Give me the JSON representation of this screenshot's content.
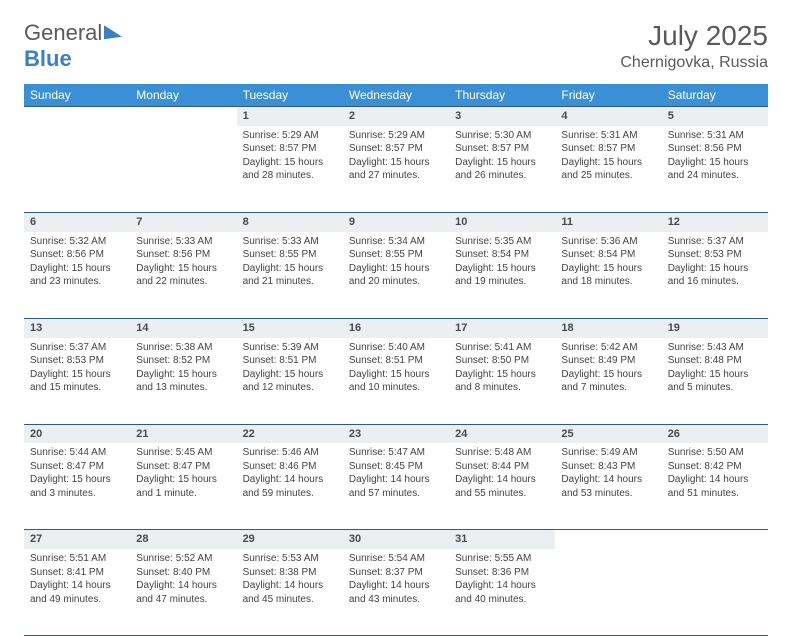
{
  "brand": {
    "part1": "General",
    "part2": "Blue"
  },
  "title": "July 2025",
  "location": "Chernigovka, Russia",
  "weekdays": [
    "Sunday",
    "Monday",
    "Tuesday",
    "Wednesday",
    "Thursday",
    "Friday",
    "Saturday"
  ],
  "colors": {
    "header_bg": "#3b8fd4",
    "header_text": "#ffffff",
    "daynum_bg": "#eceff2",
    "rule": "#2d5b88",
    "brand_gray": "#5a5a5a",
    "brand_blue": "#3b7fc4"
  },
  "weeks": [
    [
      null,
      null,
      {
        "n": "1",
        "sunrise": "5:29 AM",
        "sunset": "8:57 PM",
        "dl1": "Daylight: 15 hours",
        "dl2": "and 28 minutes."
      },
      {
        "n": "2",
        "sunrise": "5:29 AM",
        "sunset": "8:57 PM",
        "dl1": "Daylight: 15 hours",
        "dl2": "and 27 minutes."
      },
      {
        "n": "3",
        "sunrise": "5:30 AM",
        "sunset": "8:57 PM",
        "dl1": "Daylight: 15 hours",
        "dl2": "and 26 minutes."
      },
      {
        "n": "4",
        "sunrise": "5:31 AM",
        "sunset": "8:57 PM",
        "dl1": "Daylight: 15 hours",
        "dl2": "and 25 minutes."
      },
      {
        "n": "5",
        "sunrise": "5:31 AM",
        "sunset": "8:56 PM",
        "dl1": "Daylight: 15 hours",
        "dl2": "and 24 minutes."
      }
    ],
    [
      {
        "n": "6",
        "sunrise": "5:32 AM",
        "sunset": "8:56 PM",
        "dl1": "Daylight: 15 hours",
        "dl2": "and 23 minutes."
      },
      {
        "n": "7",
        "sunrise": "5:33 AM",
        "sunset": "8:56 PM",
        "dl1": "Daylight: 15 hours",
        "dl2": "and 22 minutes."
      },
      {
        "n": "8",
        "sunrise": "5:33 AM",
        "sunset": "8:55 PM",
        "dl1": "Daylight: 15 hours",
        "dl2": "and 21 minutes."
      },
      {
        "n": "9",
        "sunrise": "5:34 AM",
        "sunset": "8:55 PM",
        "dl1": "Daylight: 15 hours",
        "dl2": "and 20 minutes."
      },
      {
        "n": "10",
        "sunrise": "5:35 AM",
        "sunset": "8:54 PM",
        "dl1": "Daylight: 15 hours",
        "dl2": "and 19 minutes."
      },
      {
        "n": "11",
        "sunrise": "5:36 AM",
        "sunset": "8:54 PM",
        "dl1": "Daylight: 15 hours",
        "dl2": "and 18 minutes."
      },
      {
        "n": "12",
        "sunrise": "5:37 AM",
        "sunset": "8:53 PM",
        "dl1": "Daylight: 15 hours",
        "dl2": "and 16 minutes."
      }
    ],
    [
      {
        "n": "13",
        "sunrise": "5:37 AM",
        "sunset": "8:53 PM",
        "dl1": "Daylight: 15 hours",
        "dl2": "and 15 minutes."
      },
      {
        "n": "14",
        "sunrise": "5:38 AM",
        "sunset": "8:52 PM",
        "dl1": "Daylight: 15 hours",
        "dl2": "and 13 minutes."
      },
      {
        "n": "15",
        "sunrise": "5:39 AM",
        "sunset": "8:51 PM",
        "dl1": "Daylight: 15 hours",
        "dl2": "and 12 minutes."
      },
      {
        "n": "16",
        "sunrise": "5:40 AM",
        "sunset": "8:51 PM",
        "dl1": "Daylight: 15 hours",
        "dl2": "and 10 minutes."
      },
      {
        "n": "17",
        "sunrise": "5:41 AM",
        "sunset": "8:50 PM",
        "dl1": "Daylight: 15 hours",
        "dl2": "and 8 minutes."
      },
      {
        "n": "18",
        "sunrise": "5:42 AM",
        "sunset": "8:49 PM",
        "dl1": "Daylight: 15 hours",
        "dl2": "and 7 minutes."
      },
      {
        "n": "19",
        "sunrise": "5:43 AM",
        "sunset": "8:48 PM",
        "dl1": "Daylight: 15 hours",
        "dl2": "and 5 minutes."
      }
    ],
    [
      {
        "n": "20",
        "sunrise": "5:44 AM",
        "sunset": "8:47 PM",
        "dl1": "Daylight: 15 hours",
        "dl2": "and 3 minutes."
      },
      {
        "n": "21",
        "sunrise": "5:45 AM",
        "sunset": "8:47 PM",
        "dl1": "Daylight: 15 hours",
        "dl2": "and 1 minute."
      },
      {
        "n": "22",
        "sunrise": "5:46 AM",
        "sunset": "8:46 PM",
        "dl1": "Daylight: 14 hours",
        "dl2": "and 59 minutes."
      },
      {
        "n": "23",
        "sunrise": "5:47 AM",
        "sunset": "8:45 PM",
        "dl1": "Daylight: 14 hours",
        "dl2": "and 57 minutes."
      },
      {
        "n": "24",
        "sunrise": "5:48 AM",
        "sunset": "8:44 PM",
        "dl1": "Daylight: 14 hours",
        "dl2": "and 55 minutes."
      },
      {
        "n": "25",
        "sunrise": "5:49 AM",
        "sunset": "8:43 PM",
        "dl1": "Daylight: 14 hours",
        "dl2": "and 53 minutes."
      },
      {
        "n": "26",
        "sunrise": "5:50 AM",
        "sunset": "8:42 PM",
        "dl1": "Daylight: 14 hours",
        "dl2": "and 51 minutes."
      }
    ],
    [
      {
        "n": "27",
        "sunrise": "5:51 AM",
        "sunset": "8:41 PM",
        "dl1": "Daylight: 14 hours",
        "dl2": "and 49 minutes."
      },
      {
        "n": "28",
        "sunrise": "5:52 AM",
        "sunset": "8:40 PM",
        "dl1": "Daylight: 14 hours",
        "dl2": "and 47 minutes."
      },
      {
        "n": "29",
        "sunrise": "5:53 AM",
        "sunset": "8:38 PM",
        "dl1": "Daylight: 14 hours",
        "dl2": "and 45 minutes."
      },
      {
        "n": "30",
        "sunrise": "5:54 AM",
        "sunset": "8:37 PM",
        "dl1": "Daylight: 14 hours",
        "dl2": "and 43 minutes."
      },
      {
        "n": "31",
        "sunrise": "5:55 AM",
        "sunset": "8:36 PM",
        "dl1": "Daylight: 14 hours",
        "dl2": "and 40 minutes."
      },
      null,
      null
    ]
  ],
  "labels": {
    "sunrise_prefix": "Sunrise: ",
    "sunset_prefix": "Sunset: "
  }
}
